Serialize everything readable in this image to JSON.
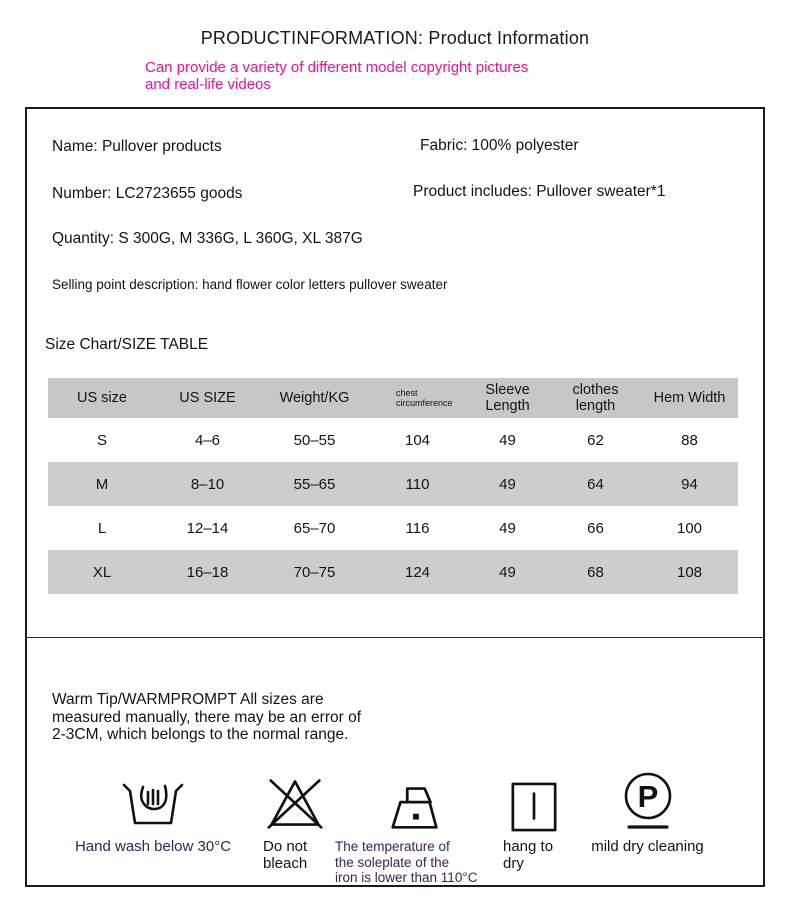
{
  "header": {
    "title": "PRODUCTINFORMATION: Product Information",
    "subtitle": "Can provide a variety of different model copyright pictures\nand real-life videos"
  },
  "product": {
    "name": "Name: Pullover products",
    "fabric": "Fabric: 100% polyester",
    "number": "Number: LC2723655 goods",
    "includes": "Product includes: Pullover sweater*1",
    "quantity": "Quantity: S 300G, M 336G, L 360G, XL 387G",
    "selling_point": "Selling point description: hand flower color letters pullover sweater"
  },
  "size_chart": {
    "heading": "Size Chart/SIZE TABLE",
    "columns": [
      "US size",
      "US SIZE",
      "Weight/KG",
      "chest\ncircumference",
      "Sleeve\nLength",
      "clothes\nlength",
      "Hem Width"
    ],
    "rows": [
      [
        "S",
        "4–6",
        "50–55",
        "104",
        "49",
        "62",
        "88"
      ],
      [
        "M",
        "8–10",
        "55–65",
        "110",
        "49",
        "64",
        "94"
      ],
      [
        "L",
        "12–14",
        "65–70",
        "116",
        "49",
        "66",
        "100"
      ],
      [
        "XL",
        "16–18",
        "70–75",
        "124",
        "49",
        "68",
        "108"
      ]
    ]
  },
  "warm_tip": "Warm Tip/WARMPROMPT All sizes are\nmeasured manually, there may be an error of\n2-3CM, which belongs to the normal range.",
  "care": {
    "items": [
      {
        "icon": "hand-wash-icon",
        "label": "Hand wash below 30°C"
      },
      {
        "icon": "do-not-bleach-icon",
        "label": "Do not\nbleach"
      },
      {
        "icon": "iron-low-temp-icon",
        "label": "The temperature of\nthe soleplate of the\niron is lower than 110°C"
      },
      {
        "icon": "hang-to-dry-icon",
        "label": "hang to\ndry"
      },
      {
        "icon": "dry-clean-p-icon",
        "label": "mild dry cleaning"
      }
    ]
  },
  "colors": {
    "accent_pink": "#EC12A0",
    "label_purple": "#3C1E54",
    "table_header_bg": "#C7C7C7",
    "table_stripe_bg": "#CDCDCD",
    "ink": "#191921",
    "box_border": "#1A1A1A"
  }
}
